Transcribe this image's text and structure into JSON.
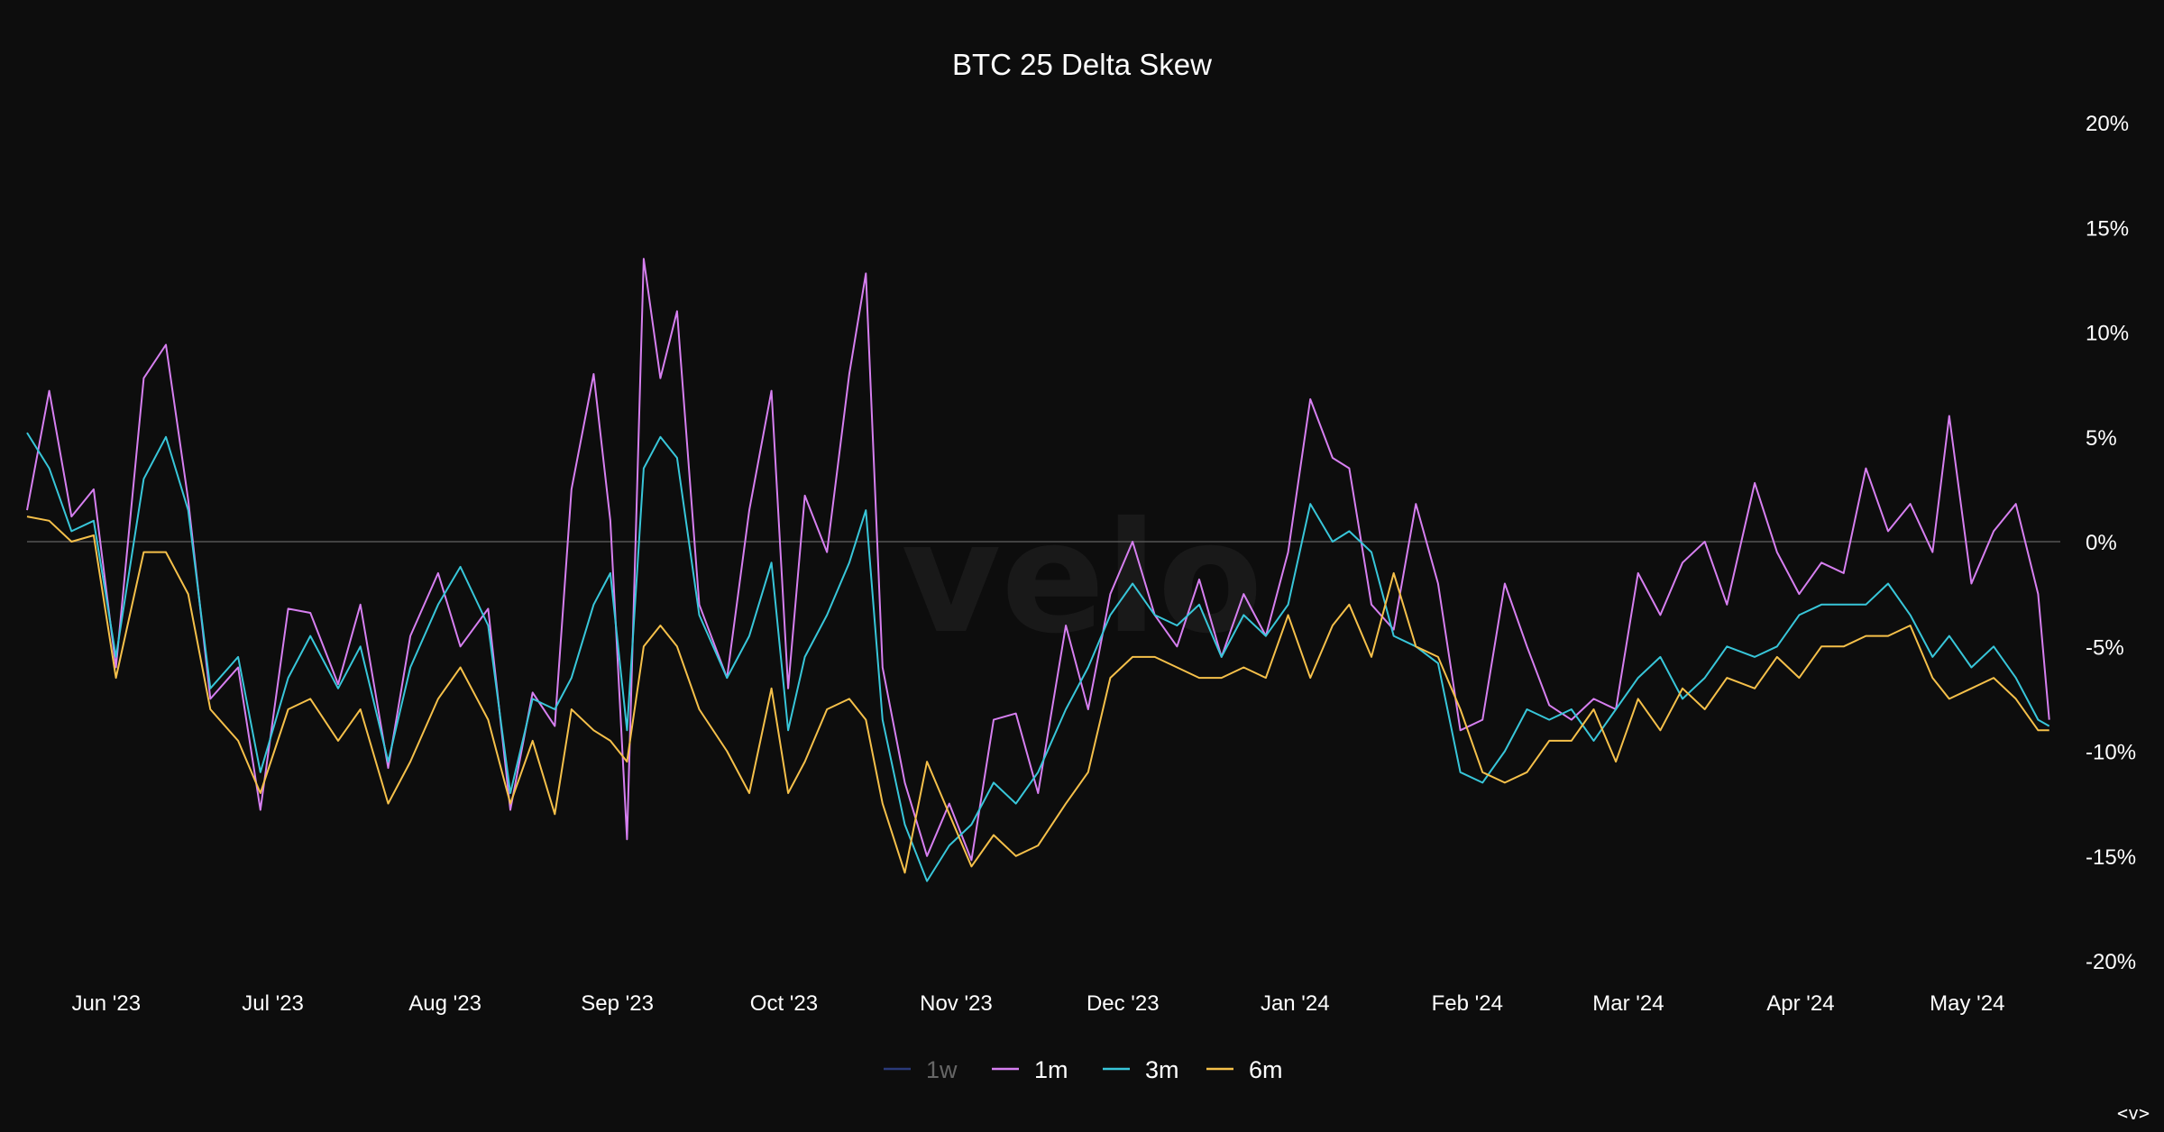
{
  "chart_data": {
    "type": "line",
    "title": "BTC 25 Delta Skew",
    "watermark": "velo",
    "ylim": [
      -20,
      20
    ],
    "y_ticks": [
      "20%",
      "15%",
      "10%",
      "5%",
      "0%",
      "-5%",
      "-10%",
      "-15%",
      "-20%"
    ],
    "y_tick_values": [
      20,
      15,
      10,
      5,
      0,
      -5,
      -10,
      -15,
      -20
    ],
    "zero_line": true,
    "x_start": "2023-05-21",
    "x_end": "2024-05-21",
    "x_ticks": [
      {
        "label": "Jun '23",
        "date": "2023-06-01"
      },
      {
        "label": "Jul '23",
        "date": "2023-07-01"
      },
      {
        "label": "Aug '23",
        "date": "2023-08-01"
      },
      {
        "label": "Sep '23",
        "date": "2023-09-01"
      },
      {
        "label": "Oct '23",
        "date": "2023-10-01"
      },
      {
        "label": "Nov '23",
        "date": "2023-11-01"
      },
      {
        "label": "Dec '23",
        "date": "2023-12-01"
      },
      {
        "label": "Jan '24",
        "date": "2024-01-01"
      },
      {
        "label": "Feb '24",
        "date": "2024-02-01"
      },
      {
        "label": "Mar '24",
        "date": "2024-03-01"
      },
      {
        "label": "Apr '24",
        "date": "2024-04-01"
      },
      {
        "label": "May '24",
        "date": "2024-05-01"
      }
    ],
    "legend_position": "bottom-center",
    "series": [
      {
        "name": "1w",
        "color": "#2a3a7a",
        "hidden": true,
        "dates": [],
        "values": []
      },
      {
        "name": "1m",
        "color": "#d67ff0",
        "dates": [
          "2023-05-21",
          "2023-05-25",
          "2023-05-29",
          "2023-06-02",
          "2023-06-06",
          "2023-06-11",
          "2023-06-15",
          "2023-06-19",
          "2023-06-23",
          "2023-06-28",
          "2023-07-02",
          "2023-07-07",
          "2023-07-11",
          "2023-07-16",
          "2023-07-20",
          "2023-07-25",
          "2023-07-29",
          "2023-08-03",
          "2023-08-07",
          "2023-08-12",
          "2023-08-16",
          "2023-08-20",
          "2023-08-24",
          "2023-08-27",
          "2023-08-31",
          "2023-09-03",
          "2023-09-06",
          "2023-09-09",
          "2023-09-12",
          "2023-09-15",
          "2023-09-19",
          "2023-09-24",
          "2023-09-28",
          "2023-10-02",
          "2023-10-05",
          "2023-10-08",
          "2023-10-12",
          "2023-10-16",
          "2023-10-19",
          "2023-10-22",
          "2023-10-26",
          "2023-10-30",
          "2023-11-03",
          "2023-11-07",
          "2023-11-11",
          "2023-11-15",
          "2023-11-19",
          "2023-11-24",
          "2023-11-28",
          "2023-12-02",
          "2023-12-06",
          "2023-12-10",
          "2023-12-14",
          "2023-12-18",
          "2023-12-22",
          "2023-12-26",
          "2023-12-30",
          "2024-01-03",
          "2024-01-07",
          "2024-01-11",
          "2024-01-14",
          "2024-01-18",
          "2024-01-22",
          "2024-01-26",
          "2024-01-30",
          "2024-02-03",
          "2024-02-07",
          "2024-02-11",
          "2024-02-15",
          "2024-02-19",
          "2024-02-23",
          "2024-02-27",
          "2024-03-02",
          "2024-03-06",
          "2024-03-10",
          "2024-03-14",
          "2024-03-18",
          "2024-03-22",
          "2024-03-27",
          "2024-03-31",
          "2024-04-04",
          "2024-04-08",
          "2024-04-12",
          "2024-04-16",
          "2024-04-20",
          "2024-04-24",
          "2024-04-28",
          "2024-05-01",
          "2024-05-05",
          "2024-05-09",
          "2024-05-13",
          "2024-05-17",
          "2024-05-19"
        ],
        "values": [
          1.5,
          7.2,
          1.2,
          2.5,
          -6.0,
          7.8,
          9.4,
          2.0,
          -7.5,
          -6.0,
          -12.8,
          -3.2,
          -3.4,
          -6.8,
          -3.0,
          -10.8,
          -4.5,
          -1.5,
          -5.0,
          -3.2,
          -12.8,
          -7.2,
          -8.8,
          2.5,
          8.0,
          1.0,
          -14.2,
          13.5,
          7.8,
          11.0,
          -3.0,
          -6.5,
          1.5,
          7.2,
          -7.0,
          2.2,
          -0.5,
          8.0,
          12.8,
          -6.0,
          -11.5,
          -15.0,
          -12.5,
          -15.2,
          -8.5,
          -8.2,
          -12.0,
          -4.0,
          -8.0,
          -2.5,
          0.0,
          -3.5,
          -5.0,
          -1.8,
          -5.5,
          -2.5,
          -4.5,
          -0.5,
          6.8,
          4.0,
          3.5,
          -3.0,
          -4.2,
          1.8,
          -2.0,
          -9.0,
          -8.5,
          -2.0,
          -5.0,
          -7.8,
          -8.5,
          -7.5,
          -8.0,
          -1.5,
          -3.5,
          -1.0,
          0.0,
          -3.0,
          2.8,
          -0.5,
          -2.5,
          -1.0,
          -1.5,
          3.5,
          0.5,
          1.8,
          -0.5,
          6.0,
          -2.0,
          0.5,
          1.8,
          -2.5,
          -8.5
        ]
      },
      {
        "name": "3m",
        "color": "#38c6d9",
        "dates": [
          "2023-05-21",
          "2023-05-25",
          "2023-05-29",
          "2023-06-02",
          "2023-06-06",
          "2023-06-11",
          "2023-06-15",
          "2023-06-19",
          "2023-06-23",
          "2023-06-28",
          "2023-07-02",
          "2023-07-07",
          "2023-07-11",
          "2023-07-16",
          "2023-07-20",
          "2023-07-25",
          "2023-07-29",
          "2023-08-03",
          "2023-08-07",
          "2023-08-12",
          "2023-08-16",
          "2023-08-20",
          "2023-08-24",
          "2023-08-27",
          "2023-08-31",
          "2023-09-03",
          "2023-09-06",
          "2023-09-09",
          "2023-09-12",
          "2023-09-15",
          "2023-09-19",
          "2023-09-24",
          "2023-09-28",
          "2023-10-02",
          "2023-10-05",
          "2023-10-08",
          "2023-10-12",
          "2023-10-16",
          "2023-10-19",
          "2023-10-22",
          "2023-10-26",
          "2023-10-30",
          "2023-11-03",
          "2023-11-07",
          "2023-11-11",
          "2023-11-15",
          "2023-11-19",
          "2023-11-24",
          "2023-11-28",
          "2023-12-02",
          "2023-12-06",
          "2023-12-10",
          "2023-12-14",
          "2023-12-18",
          "2023-12-22",
          "2023-12-26",
          "2023-12-30",
          "2024-01-03",
          "2024-01-07",
          "2024-01-11",
          "2024-01-14",
          "2024-01-18",
          "2024-01-22",
          "2024-01-26",
          "2024-01-30",
          "2024-02-03",
          "2024-02-07",
          "2024-02-11",
          "2024-02-15",
          "2024-02-19",
          "2024-02-23",
          "2024-02-27",
          "2024-03-02",
          "2024-03-06",
          "2024-03-10",
          "2024-03-14",
          "2024-03-18",
          "2024-03-22",
          "2024-03-27",
          "2024-03-31",
          "2024-04-04",
          "2024-04-08",
          "2024-04-12",
          "2024-04-16",
          "2024-04-20",
          "2024-04-24",
          "2024-04-28",
          "2024-05-01",
          "2024-05-05",
          "2024-05-09",
          "2024-05-13",
          "2024-05-17",
          "2024-05-19"
        ],
        "values": [
          5.2,
          3.5,
          0.5,
          1.0,
          -5.5,
          3.0,
          5.0,
          1.5,
          -7.0,
          -5.5,
          -11.0,
          -6.5,
          -4.5,
          -7.0,
          -5.0,
          -10.5,
          -6.0,
          -3.0,
          -1.2,
          -4.0,
          -12.0,
          -7.5,
          -8.0,
          -6.5,
          -3.0,
          -1.5,
          -9.0,
          3.5,
          5.0,
          4.0,
          -3.5,
          -6.5,
          -4.5,
          -1.0,
          -9.0,
          -5.5,
          -3.5,
          -1.0,
          1.5,
          -8.5,
          -13.5,
          -16.2,
          -14.5,
          -13.5,
          -11.5,
          -12.5,
          -11.0,
          -8.0,
          -6.0,
          -3.5,
          -2.0,
          -3.5,
          -4.0,
          -3.0,
          -5.5,
          -3.5,
          -4.5,
          -3.0,
          1.8,
          0.0,
          0.5,
          -0.5,
          -4.5,
          -5.0,
          -5.8,
          -11.0,
          -11.5,
          -10.0,
          -8.0,
          -8.5,
          -8.0,
          -9.5,
          -8.0,
          -6.5,
          -5.5,
          -7.5,
          -6.5,
          -5.0,
          -5.5,
          -5.0,
          -3.5,
          -3.0,
          -3.0,
          -3.0,
          -2.0,
          -3.5,
          -5.5,
          -4.5,
          -6.0,
          -5.0,
          -6.5,
          -8.5,
          -8.8
        ]
      },
      {
        "name": "6m",
        "color": "#f5c04a",
        "dates": [
          "2023-05-21",
          "2023-05-25",
          "2023-05-29",
          "2023-06-02",
          "2023-06-06",
          "2023-06-11",
          "2023-06-15",
          "2023-06-19",
          "2023-06-23",
          "2023-06-28",
          "2023-07-02",
          "2023-07-07",
          "2023-07-11",
          "2023-07-16",
          "2023-07-20",
          "2023-07-25",
          "2023-07-29",
          "2023-08-03",
          "2023-08-07",
          "2023-08-12",
          "2023-08-16",
          "2023-08-20",
          "2023-08-24",
          "2023-08-27",
          "2023-08-31",
          "2023-09-03",
          "2023-09-06",
          "2023-09-09",
          "2023-09-12",
          "2023-09-15",
          "2023-09-19",
          "2023-09-24",
          "2023-09-28",
          "2023-10-02",
          "2023-10-05",
          "2023-10-08",
          "2023-10-12",
          "2023-10-16",
          "2023-10-19",
          "2023-10-22",
          "2023-10-26",
          "2023-10-30",
          "2023-11-03",
          "2023-11-07",
          "2023-11-11",
          "2023-11-15",
          "2023-11-19",
          "2023-11-24",
          "2023-11-28",
          "2023-12-02",
          "2023-12-06",
          "2023-12-10",
          "2023-12-14",
          "2023-12-18",
          "2023-12-22",
          "2023-12-26",
          "2023-12-30",
          "2024-01-03",
          "2024-01-07",
          "2024-01-11",
          "2024-01-14",
          "2024-01-18",
          "2024-01-22",
          "2024-01-26",
          "2024-01-30",
          "2024-02-03",
          "2024-02-07",
          "2024-02-11",
          "2024-02-15",
          "2024-02-19",
          "2024-02-23",
          "2024-02-27",
          "2024-03-02",
          "2024-03-06",
          "2024-03-10",
          "2024-03-14",
          "2024-03-18",
          "2024-03-22",
          "2024-03-27",
          "2024-03-31",
          "2024-04-04",
          "2024-04-08",
          "2024-04-12",
          "2024-04-16",
          "2024-04-20",
          "2024-04-24",
          "2024-04-28",
          "2024-05-01",
          "2024-05-05",
          "2024-05-09",
          "2024-05-13",
          "2024-05-17",
          "2024-05-19"
        ],
        "values": [
          1.2,
          1.0,
          0.0,
          0.3,
          -6.5,
          -0.5,
          -0.5,
          -2.5,
          -8.0,
          -9.5,
          -12.0,
          -8.0,
          -7.5,
          -9.5,
          -8.0,
          -12.5,
          -10.5,
          -7.5,
          -6.0,
          -8.5,
          -12.5,
          -9.5,
          -13.0,
          -8.0,
          -9.0,
          -9.5,
          -10.5,
          -5.0,
          -4.0,
          -5.0,
          -8.0,
          -10.0,
          -12.0,
          -7.0,
          -12.0,
          -10.5,
          -8.0,
          -7.5,
          -8.5,
          -12.5,
          -15.8,
          -10.5,
          -13.0,
          -15.5,
          -14.0,
          -15.0,
          -14.5,
          -12.5,
          -11.0,
          -6.5,
          -5.5,
          -5.5,
          -6.0,
          -6.5,
          -6.5,
          -6.0,
          -6.5,
          -3.5,
          -6.5,
          -4.0,
          -3.0,
          -5.5,
          -1.5,
          -5.0,
          -5.5,
          -8.0,
          -11.0,
          -11.5,
          -11.0,
          -9.5,
          -9.5,
          -8.0,
          -10.5,
          -7.5,
          -9.0,
          -7.0,
          -8.0,
          -6.5,
          -7.0,
          -5.5,
          -6.5,
          -5.0,
          -5.0,
          -4.5,
          -4.5,
          -4.0,
          -6.5,
          -7.5,
          -7.0,
          -6.5,
          -7.5,
          -9.0,
          -9.0
        ]
      }
    ]
  },
  "nav": {
    "label": "<v>"
  }
}
